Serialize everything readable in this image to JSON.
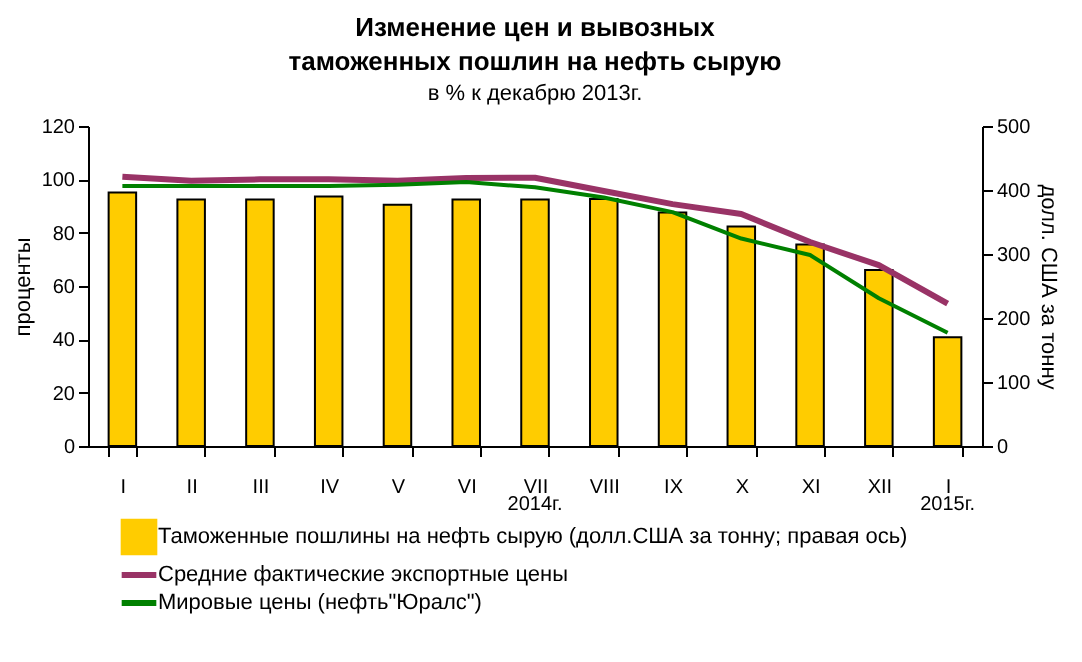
{
  "chart_data": {
    "type": "bar",
    "title": "Изменение цен и вывозных таможенных пошлин на нефть сырую",
    "subtitle": "в % к декабрю 2013г.",
    "ylabel": "проценты",
    "y2label": "долл. США за тонну",
    "categories": [
      "I",
      "II",
      "III",
      "IV",
      "V",
      "VI",
      "VII",
      "VIII",
      "IX",
      "X",
      "XI",
      "XII",
      "I"
    ],
    "series": [
      {
        "name": "Таможенные пошлины на нефть сырую (долл.США за тонну; правая ось)",
        "axis": "y2",
        "color": "#ffcc00",
        "values": [
          396,
          385,
          385,
          390,
          377,
          385,
          385,
          386,
          365,
          343,
          315,
          275,
          170
        ]
      },
      {
        "name": "Средние фактические экспортные цены",
        "type": "line",
        "color": "#993366",
        "values": [
          101,
          99.5,
          100,
          100,
          99.5,
          100.5,
          100.6,
          95.6,
          90.7,
          87,
          76.5,
          67.8,
          53.4
        ]
      },
      {
        "name": "Мировые цены (нефть\"Юралс\")",
        "type": "line",
        "color": "#008000",
        "values": [
          97.5,
          97.5,
          97.5,
          97.5,
          98,
          99,
          97,
          93.2,
          87.7,
          77.8,
          71.6,
          55.4,
          42.5
        ]
      }
    ],
    "ylim": [
      0,
      120
    ],
    "yticks": [
      0,
      20,
      40,
      60,
      80,
      100,
      120
    ],
    "y2lim": [
      0,
      500
    ],
    "y2ticks": [
      0,
      100,
      200,
      300,
      400,
      500
    ],
    "annotations": [
      "2014г.",
      "2015г."
    ],
    "legend": "bottom left",
    "grid": false
  }
}
